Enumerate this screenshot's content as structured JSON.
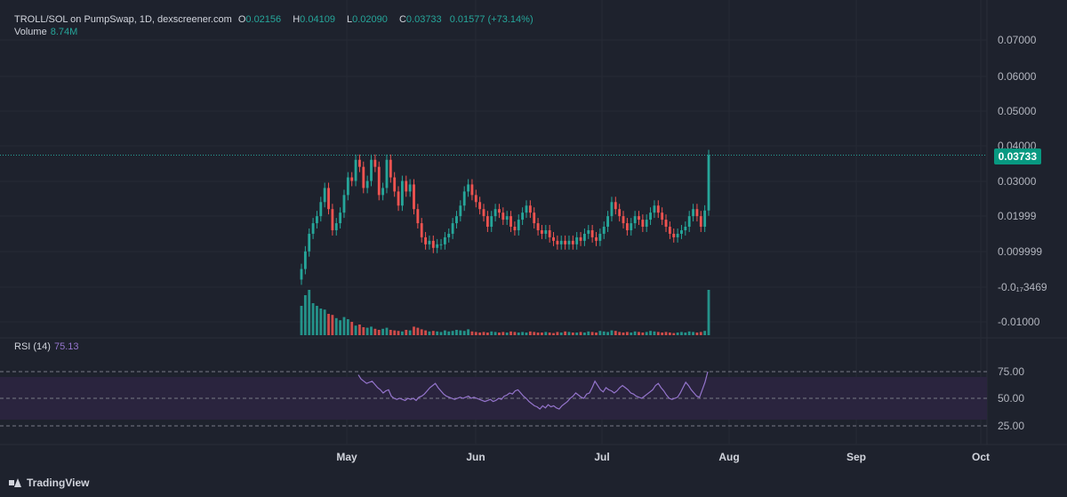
{
  "header": {
    "pair": "TROLL/SOL on PumpSwap, 1D, dexscreener.com",
    "o_label": "O",
    "o_value": "0.02156",
    "h_label": "H",
    "h_value": "0.04109",
    "l_label": "L",
    "l_value": "0.02090",
    "c_label": "C",
    "c_value": "0.03733",
    "change": "0.01577 (+73.14%)",
    "volume_label": "Volume",
    "volume_value": "8.74M"
  },
  "rsi": {
    "label": "RSI (14)",
    "value": "75.13"
  },
  "price_tag": "0.03733",
  "brand": "TradingView",
  "colors": {
    "up": "#26a69a",
    "down": "#ef5350",
    "rsi": "#9575cd",
    "background": "#1e222d"
  },
  "chart_data": {
    "type": "candlestick",
    "price_axis_ticks": [
      "0.07000",
      "0.06000",
      "0.05000",
      "0.04000",
      "0.03000",
      "0.01999",
      "0.009999",
      "-0.0₁₇3469",
      "-0.01000"
    ],
    "rsi_axis_ticks": [
      "75.00",
      "50.00",
      "25.00"
    ],
    "x_ticks": [
      "May",
      "Jun",
      "Jul",
      "Aug",
      "Sep",
      "Oct"
    ],
    "last_close": 0.03733,
    "candles_o": [
      0.002,
      0.005,
      0.01,
      0.015,
      0.018,
      0.02,
      0.024,
      0.028,
      0.022,
      0.016,
      0.018,
      0.021,
      0.026,
      0.031,
      0.03,
      0.036,
      0.034,
      0.028,
      0.03,
      0.036,
      0.034,
      0.026,
      0.028,
      0.036,
      0.031,
      0.027,
      0.023,
      0.03,
      0.027,
      0.029,
      0.022,
      0.018,
      0.014,
      0.012,
      0.013,
      0.011,
      0.012,
      0.012,
      0.014,
      0.015,
      0.018,
      0.02,
      0.023,
      0.027,
      0.029,
      0.026,
      0.024,
      0.022,
      0.02,
      0.017,
      0.02,
      0.022,
      0.021,
      0.019,
      0.02,
      0.017,
      0.016,
      0.019,
      0.021,
      0.023,
      0.021,
      0.018,
      0.016,
      0.015,
      0.016,
      0.014,
      0.013,
      0.012,
      0.013,
      0.012,
      0.013,
      0.012,
      0.014,
      0.013,
      0.015,
      0.016,
      0.014,
      0.013,
      0.015,
      0.017,
      0.02,
      0.024,
      0.022,
      0.02,
      0.018,
      0.016,
      0.018,
      0.02,
      0.019,
      0.017,
      0.019,
      0.021,
      0.023,
      0.021,
      0.019,
      0.017,
      0.015,
      0.014,
      0.015,
      0.016,
      0.017,
      0.02,
      0.022,
      0.02,
      0.017,
      0.0216
    ],
    "candles_c": [
      0.005,
      0.01,
      0.015,
      0.018,
      0.02,
      0.024,
      0.028,
      0.022,
      0.016,
      0.018,
      0.021,
      0.026,
      0.031,
      0.03,
      0.036,
      0.034,
      0.028,
      0.03,
      0.036,
      0.034,
      0.026,
      0.028,
      0.036,
      0.031,
      0.027,
      0.023,
      0.03,
      0.027,
      0.029,
      0.022,
      0.018,
      0.014,
      0.012,
      0.013,
      0.011,
      0.012,
      0.012,
      0.014,
      0.015,
      0.018,
      0.02,
      0.023,
      0.027,
      0.029,
      0.026,
      0.024,
      0.022,
      0.02,
      0.017,
      0.02,
      0.022,
      0.021,
      0.019,
      0.02,
      0.017,
      0.016,
      0.019,
      0.021,
      0.023,
      0.021,
      0.018,
      0.016,
      0.015,
      0.016,
      0.014,
      0.013,
      0.012,
      0.013,
      0.012,
      0.013,
      0.012,
      0.014,
      0.013,
      0.015,
      0.016,
      0.014,
      0.013,
      0.015,
      0.017,
      0.02,
      0.024,
      0.022,
      0.02,
      0.018,
      0.016,
      0.018,
      0.02,
      0.019,
      0.017,
      0.019,
      0.021,
      0.023,
      0.021,
      0.019,
      0.017,
      0.015,
      0.014,
      0.015,
      0.016,
      0.017,
      0.02,
      0.022,
      0.02,
      0.017,
      0.0216,
      0.03733
    ],
    "volume_rel": [
      0.55,
      0.75,
      0.85,
      0.6,
      0.55,
      0.5,
      0.48,
      0.4,
      0.38,
      0.32,
      0.28,
      0.34,
      0.3,
      0.25,
      0.18,
      0.2,
      0.15,
      0.14,
      0.16,
      0.12,
      0.1,
      0.12,
      0.14,
      0.1,
      0.09,
      0.08,
      0.07,
      0.1,
      0.09,
      0.16,
      0.14,
      0.11,
      0.09,
      0.07,
      0.08,
      0.07,
      0.06,
      0.09,
      0.07,
      0.08,
      0.1,
      0.09,
      0.08,
      0.11,
      0.07,
      0.06,
      0.05,
      0.06,
      0.05,
      0.07,
      0.06,
      0.05,
      0.06,
      0.05,
      0.07,
      0.06,
      0.05,
      0.06,
      0.05,
      0.07,
      0.06,
      0.05,
      0.05,
      0.06,
      0.05,
      0.04,
      0.06,
      0.05,
      0.07,
      0.06,
      0.05,
      0.05,
      0.06,
      0.05,
      0.07,
      0.06,
      0.05,
      0.08,
      0.07,
      0.06,
      0.09,
      0.08,
      0.06,
      0.05,
      0.06,
      0.05,
      0.07,
      0.06,
      0.05,
      0.06,
      0.08,
      0.07,
      0.06,
      0.05,
      0.06,
      0.05,
      0.04,
      0.05,
      0.06,
      0.05,
      0.07,
      0.06,
      0.05,
      0.06,
      0.08,
      0.85
    ],
    "rsi_values": [
      72,
      68,
      66,
      64,
      65,
      66,
      63,
      60,
      58,
      55,
      57,
      58,
      52,
      50,
      49,
      50,
      49,
      48,
      50,
      49,
      50,
      48,
      51,
      52,
      54,
      57,
      60,
      62,
      64,
      60,
      57,
      54,
      52,
      51,
      50,
      49,
      50,
      51,
      50,
      51,
      52,
      50,
      51,
      50,
      49,
      48,
      47,
      48,
      49,
      47,
      48,
      50,
      49,
      52,
      53,
      55,
      54,
      57,
      58,
      55,
      52,
      50,
      47,
      45,
      43,
      42,
      40,
      43,
      41,
      44,
      42,
      43,
      41,
      40,
      43,
      45,
      47,
      50,
      52,
      55,
      53,
      51,
      50,
      54,
      55,
      60,
      66,
      62,
      58,
      56,
      60,
      58,
      57,
      55,
      57,
      60,
      62,
      60,
      58,
      55,
      54,
      52,
      51,
      50,
      52,
      54,
      56,
      58,
      62,
      64,
      60,
      57,
      53,
      50,
      49,
      50,
      51,
      55,
      60,
      65,
      62,
      58,
      55,
      52,
      51,
      58,
      65,
      75
    ]
  }
}
